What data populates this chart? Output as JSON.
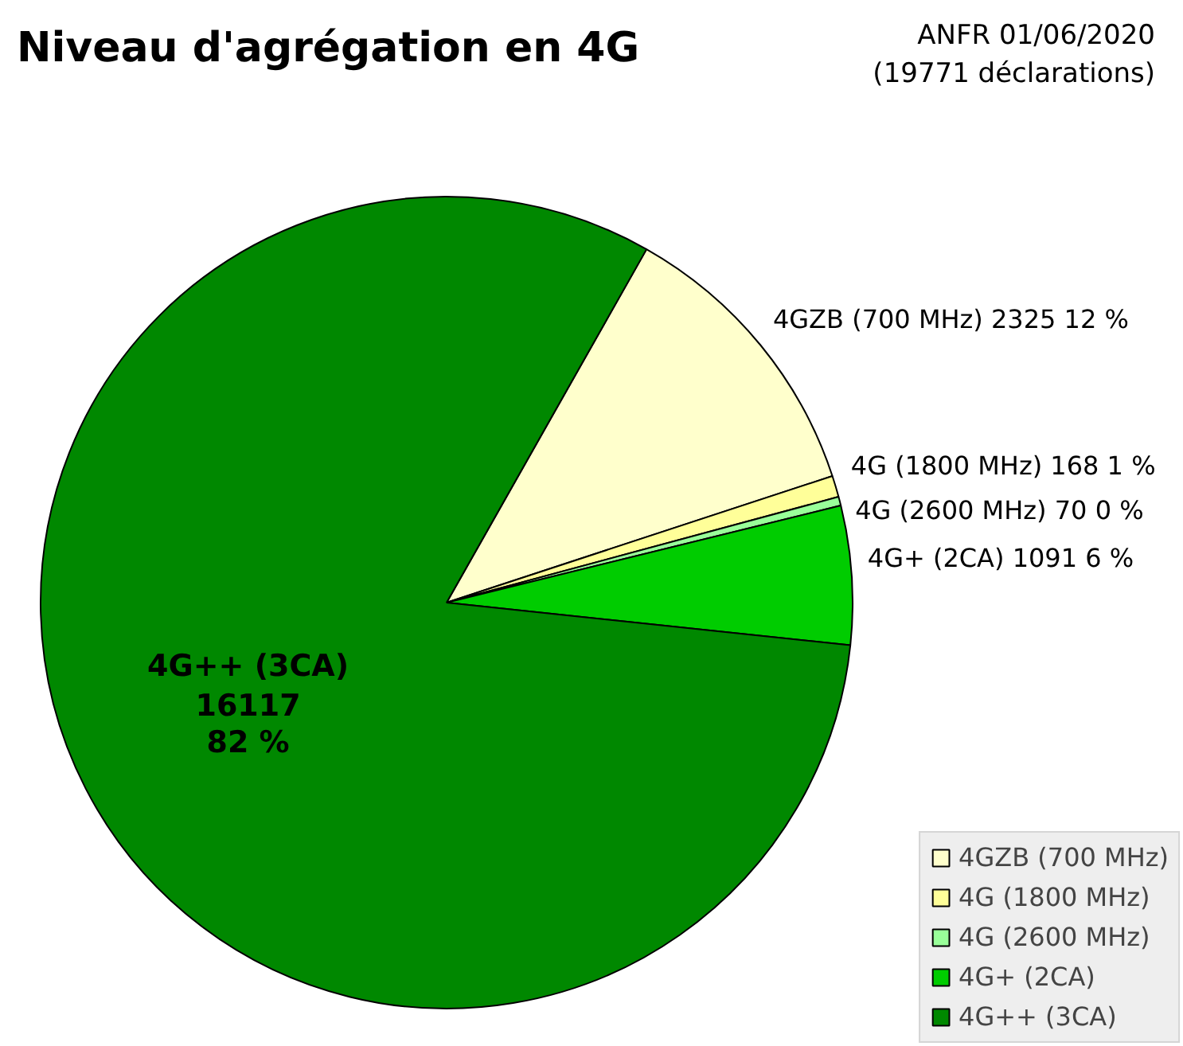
{
  "chart_data": {
    "type": "pie",
    "title": "Niveau d'agrégation en 4G",
    "annotations": [
      "ANFR 01/06/2020",
      "(19771 déclarations)"
    ],
    "categories": [
      "4GZB (700 MHz)",
      "4G (1800 MHz)",
      "4G (2600 MHz)",
      "4G+ (2CA)",
      "4G++ (3CA)"
    ],
    "values": [
      2325,
      168,
      70,
      1091,
      16117
    ],
    "value_labels": [
      "2325 12 %",
      "168 1 %",
      "70 0 %",
      "1091 6 %",
      "16117 82 %"
    ],
    "colors": [
      "#ffffcc",
      "#ffff99",
      "#99ff99",
      "#00cc00",
      "#008800"
    ],
    "legend": "bottom right"
  }
}
